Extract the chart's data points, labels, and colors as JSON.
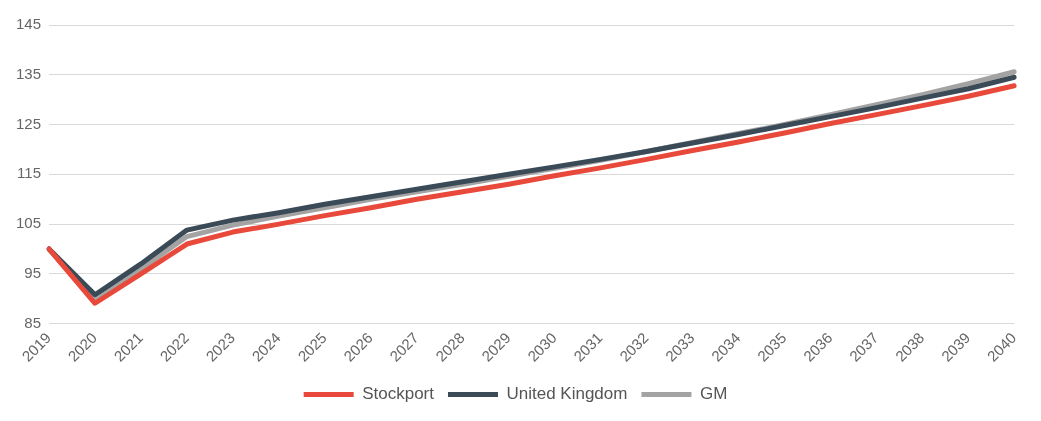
{
  "chart_data": {
    "type": "line",
    "categories": [
      "2019",
      "2020",
      "2021",
      "2022",
      "2023",
      "2024",
      "2025",
      "2026",
      "2027",
      "2028",
      "2029",
      "2030",
      "2031",
      "2032",
      "2033",
      "2034",
      "2035",
      "2036",
      "2037",
      "2038",
      "2039",
      "2040"
    ],
    "series": [
      {
        "name": "Stockport",
        "color": "#e8493a",
        "values": [
          100,
          89.1,
          95,
          101,
          103.4,
          105,
          106.7,
          108.3,
          110,
          111.5,
          113,
          114.7,
          116.3,
          118,
          119.8,
          121.5,
          123.3,
          125.2,
          127,
          128.8,
          130.7,
          132.8
        ]
      },
      {
        "name": "United Kingdom",
        "color": "#3b4a57",
        "values": [
          100,
          90.8,
          97,
          103.8,
          105.8,
          107.3,
          109,
          110.5,
          112,
          113.5,
          115,
          116.5,
          118,
          119.6,
          121.3,
          123,
          124.8,
          126.6,
          128.4,
          130.3,
          132.2,
          134.5
        ]
      },
      {
        "name": "GM",
        "color": "#a3a3a3",
        "values": [
          100,
          89.5,
          96,
          102.5,
          104.8,
          106.6,
          108.3,
          110,
          111.5,
          113,
          114.6,
          116.2,
          117.8,
          119.6,
          121.4,
          123.2,
          125,
          127,
          129,
          131,
          133.2,
          135.6
        ]
      }
    ],
    "ylim": [
      85,
      145
    ],
    "yticks": [
      85,
      95,
      105,
      115,
      125,
      135,
      145
    ],
    "grid": "y",
    "legend": "bottom",
    "marker": "none",
    "line_style": "solid"
  }
}
